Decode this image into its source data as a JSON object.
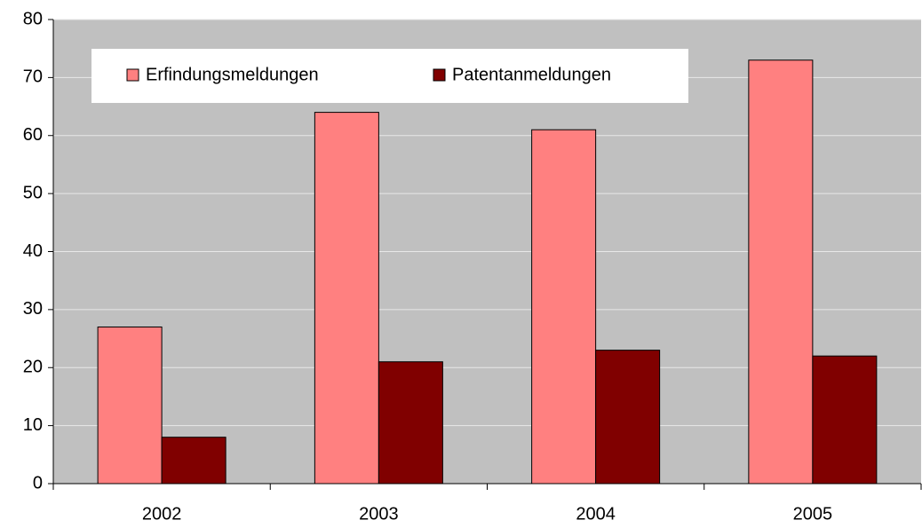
{
  "chart_data": {
    "type": "bar",
    "categories": [
      "2002",
      "2003",
      "2004",
      "2005"
    ],
    "series": [
      {
        "name": "Erfindungsmeldungen",
        "color": "#ff8080",
        "values": [
          27,
          64,
          61,
          73
        ]
      },
      {
        "name": "Patentanmeldungen",
        "color": "#800000",
        "values": [
          8,
          21,
          23,
          22
        ]
      }
    ],
    "ylim": [
      0,
      80
    ],
    "yticks": [
      0,
      10,
      20,
      30,
      40,
      50,
      60,
      70,
      80
    ],
    "grid": true,
    "legend": "top-left"
  }
}
